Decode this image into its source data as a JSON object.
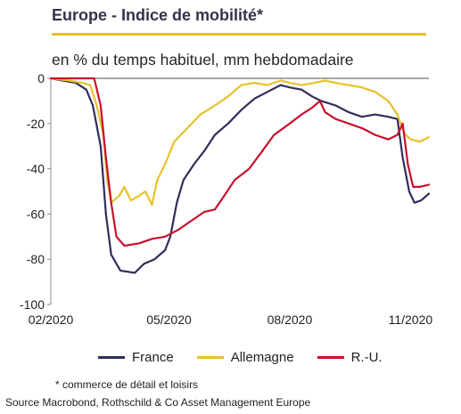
{
  "header": {
    "title": "Europe - Indice de mobilité*",
    "subtitle": "en % du temps habituel, mm hebdomadaire"
  },
  "footnote": "* commerce de détail et loisirs",
  "source": "Source Macrobond, Rothschild & Co Asset Management Europe",
  "chart_data": {
    "type": "line",
    "title": "Europe - Indice de mobilité*",
    "subtitle": "en % du temps habituel, mm hebdomadaire",
    "xlabel": "",
    "ylabel": "",
    "x_range": [
      "2020-02-01",
      "2020-11-15"
    ],
    "x_ticks": [
      {
        "date": "2020-02-01",
        "label": "02/2020"
      },
      {
        "date": "2020-05-01",
        "label": "05/2020"
      },
      {
        "date": "2020-08-01",
        "label": "08/2020"
      },
      {
        "date": "2020-11-01",
        "label": "11/2020"
      }
    ],
    "ylim": [
      -100,
      0
    ],
    "y_ticks": [
      0,
      -20,
      -40,
      -60,
      -80,
      -100
    ],
    "grid": false,
    "legend_position": "bottom",
    "series": [
      {
        "name": "France",
        "color": "#2e2e5c",
        "points": [
          [
            "2020-02-01",
            0
          ],
          [
            "2020-02-10",
            -1
          ],
          [
            "2020-02-20",
            -2
          ],
          [
            "2020-02-28",
            -5
          ],
          [
            "2020-03-04",
            -12
          ],
          [
            "2020-03-10",
            -30
          ],
          [
            "2020-03-14",
            -60
          ],
          [
            "2020-03-18",
            -78
          ],
          [
            "2020-03-25",
            -85
          ],
          [
            "2020-04-05",
            -86
          ],
          [
            "2020-04-12",
            -82
          ],
          [
            "2020-04-20",
            -80
          ],
          [
            "2020-04-28",
            -76
          ],
          [
            "2020-05-02",
            -70
          ],
          [
            "2020-05-07",
            -55
          ],
          [
            "2020-05-12",
            -45
          ],
          [
            "2020-05-20",
            -38
          ],
          [
            "2020-05-28",
            -32
          ],
          [
            "2020-06-05",
            -25
          ],
          [
            "2020-06-15",
            -20
          ],
          [
            "2020-06-25",
            -14
          ],
          [
            "2020-07-05",
            -9
          ],
          [
            "2020-07-15",
            -6
          ],
          [
            "2020-07-25",
            -3
          ],
          [
            "2020-08-01",
            -4
          ],
          [
            "2020-08-10",
            -5
          ],
          [
            "2020-08-18",
            -8
          ],
          [
            "2020-08-25",
            -10
          ],
          [
            "2020-09-05",
            -12
          ],
          [
            "2020-09-15",
            -15
          ],
          [
            "2020-09-25",
            -17
          ],
          [
            "2020-10-05",
            -16
          ],
          [
            "2020-10-15",
            -17
          ],
          [
            "2020-10-22",
            -18
          ],
          [
            "2020-10-26",
            -35
          ],
          [
            "2020-10-31",
            -50
          ],
          [
            "2020-11-04",
            -55
          ],
          [
            "2020-11-09",
            -54
          ],
          [
            "2020-11-15",
            -51
          ]
        ]
      },
      {
        "name": "Allemagne",
        "color": "#e8c12a",
        "points": [
          [
            "2020-02-01",
            0
          ],
          [
            "2020-02-15",
            -1
          ],
          [
            "2020-02-25",
            -2
          ],
          [
            "2020-03-02",
            -3
          ],
          [
            "2020-03-07",
            -12
          ],
          [
            "2020-03-12",
            -25
          ],
          [
            "2020-03-15",
            -45
          ],
          [
            "2020-03-18",
            -55
          ],
          [
            "2020-03-24",
            -52
          ],
          [
            "2020-03-28",
            -48
          ],
          [
            "2020-04-02",
            -54
          ],
          [
            "2020-04-08",
            -52
          ],
          [
            "2020-04-13",
            -50
          ],
          [
            "2020-04-18",
            -56
          ],
          [
            "2020-04-22",
            -45
          ],
          [
            "2020-04-28",
            -38
          ],
          [
            "2020-05-05",
            -28
          ],
          [
            "2020-05-15",
            -22
          ],
          [
            "2020-05-25",
            -16
          ],
          [
            "2020-06-05",
            -12
          ],
          [
            "2020-06-15",
            -8
          ],
          [
            "2020-06-25",
            -3
          ],
          [
            "2020-07-05",
            -2
          ],
          [
            "2020-07-15",
            -3
          ],
          [
            "2020-07-25",
            -1
          ],
          [
            "2020-08-01",
            -2
          ],
          [
            "2020-08-10",
            -3
          ],
          [
            "2020-08-20",
            -2
          ],
          [
            "2020-08-28",
            -1
          ],
          [
            "2020-09-05",
            -2
          ],
          [
            "2020-09-15",
            -3
          ],
          [
            "2020-09-25",
            -4
          ],
          [
            "2020-10-05",
            -6
          ],
          [
            "2020-10-15",
            -10
          ],
          [
            "2020-10-22",
            -16
          ],
          [
            "2020-10-27",
            -24
          ],
          [
            "2020-11-01",
            -27
          ],
          [
            "2020-11-08",
            -28
          ],
          [
            "2020-11-15",
            -26
          ]
        ]
      },
      {
        "name": "R.-U.",
        "color": "#c8102e",
        "points": [
          [
            "2020-02-01",
            0
          ],
          [
            "2020-02-20",
            0
          ],
          [
            "2020-03-05",
            0
          ],
          [
            "2020-03-10",
            -12
          ],
          [
            "2020-03-14",
            -35
          ],
          [
            "2020-03-18",
            -55
          ],
          [
            "2020-03-22",
            -70
          ],
          [
            "2020-03-28",
            -74
          ],
          [
            "2020-04-08",
            -73
          ],
          [
            "2020-04-18",
            -71
          ],
          [
            "2020-04-28",
            -70
          ],
          [
            "2020-05-08",
            -67
          ],
          [
            "2020-05-18",
            -63
          ],
          [
            "2020-05-28",
            -59
          ],
          [
            "2020-06-05",
            -58
          ],
          [
            "2020-06-12",
            -52
          ],
          [
            "2020-06-20",
            -45
          ],
          [
            "2020-07-01",
            -40
          ],
          [
            "2020-07-10",
            -33
          ],
          [
            "2020-07-20",
            -25
          ],
          [
            "2020-08-01",
            -20
          ],
          [
            "2020-08-10",
            -16
          ],
          [
            "2020-08-18",
            -13
          ],
          [
            "2020-08-24",
            -10
          ],
          [
            "2020-08-28",
            -15
          ],
          [
            "2020-09-05",
            -18
          ],
          [
            "2020-09-15",
            -20
          ],
          [
            "2020-09-25",
            -22
          ],
          [
            "2020-10-05",
            -25
          ],
          [
            "2020-10-15",
            -27
          ],
          [
            "2020-10-22",
            -25
          ],
          [
            "2020-10-26",
            -20
          ],
          [
            "2020-10-30",
            -38
          ],
          [
            "2020-11-03",
            -48
          ],
          [
            "2020-11-08",
            -48
          ],
          [
            "2020-11-15",
            -47
          ]
        ]
      }
    ]
  }
}
